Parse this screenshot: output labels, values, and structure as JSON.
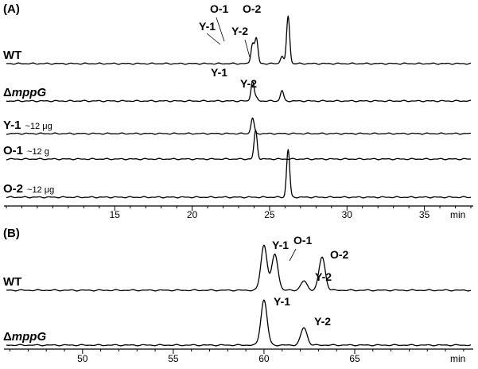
{
  "chart_data": [
    {
      "panel": "(A)",
      "type": "line",
      "xlabel": "min",
      "xlim": [
        8,
        38
      ],
      "xticks": [
        15,
        20,
        25,
        30,
        35
      ],
      "grid": false,
      "series": [
        {
          "name": "WT",
          "amount": "",
          "peaks": [
            {
              "label": "Y-1",
              "x": 23.9,
              "height": 0.42
            },
            {
              "label": "O-1",
              "x": 24.15,
              "height": 0.52
            },
            {
              "label": "Y-2",
              "x": 25.8,
              "height": 0.16
            },
            {
              "label": "O-2",
              "x": 26.2,
              "height": 1.0
            }
          ]
        },
        {
          "name": "ΔmppG",
          "amount": "",
          "peaks": [
            {
              "label": "Y-1",
              "x": 23.9,
              "height": 0.42
            },
            {
              "label": "",
              "x": 24.15,
              "height": 0.06
            },
            {
              "label": "Y-2",
              "x": 25.8,
              "height": 0.22
            }
          ]
        },
        {
          "name": "Y-1",
          "amount": "~12 μg",
          "peaks": [
            {
              "label": "",
              "x": 23.9,
              "height": 0.33
            }
          ]
        },
        {
          "name": "O-1",
          "amount": "~12 g",
          "peaks": [
            {
              "label": "",
              "x": 24.1,
              "height": 0.6
            }
          ]
        },
        {
          "name": "O-2",
          "amount": "~12 μg",
          "peaks": [
            {
              "label": "",
              "x": 26.2,
              "height": 1.0
            }
          ]
        }
      ]
    },
    {
      "panel": "(B)",
      "type": "line",
      "xlabel": "min",
      "xlim": [
        45.8,
        71.4
      ],
      "xticks": [
        50,
        55,
        60,
        65
      ],
      "grid": false,
      "series": [
        {
          "name": "WT",
          "amount": "",
          "peaks": [
            {
              "label": "Y-1",
              "x": 60.0,
              "height": 0.98
            },
            {
              "label": "O-1",
              "x": 60.6,
              "height": 0.78
            },
            {
              "label": "Y-2",
              "x": 62.2,
              "height": 0.2
            },
            {
              "label": "O-2",
              "x": 63.2,
              "height": 0.72
            }
          ]
        },
        {
          "name": "ΔmppG",
          "amount": "",
          "peaks": [
            {
              "label": "Y-1",
              "x": 60.0,
              "height": 0.98
            },
            {
              "label": "Y-2",
              "x": 62.2,
              "height": 0.38
            }
          ]
        }
      ]
    }
  ]
}
